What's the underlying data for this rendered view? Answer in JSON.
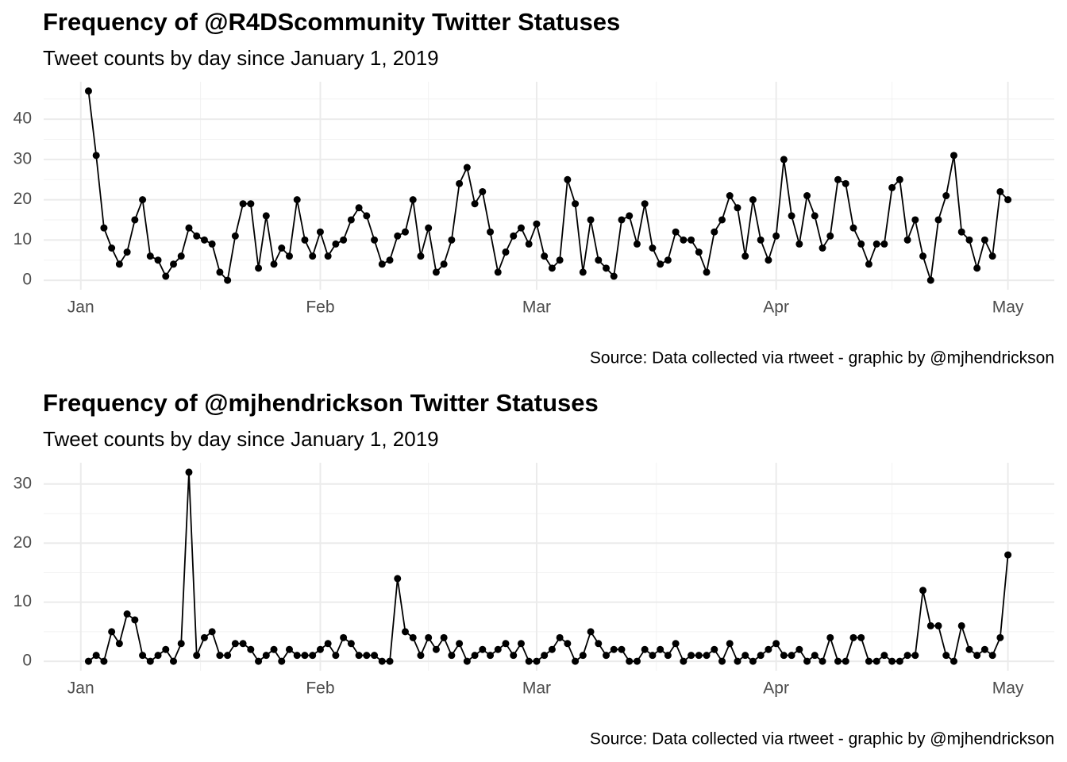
{
  "chart_data": [
    {
      "type": "line",
      "title": "Frequency of @R4DScommunity Twitter Statuses",
      "subtitle": "Tweet counts by day since January 1, 2019",
      "caption": "Source: Data collected via rtweet - graphic by @mjhendrickson",
      "x": [
        1,
        2,
        3,
        4,
        5,
        6,
        7,
        8,
        9,
        10,
        11,
        12,
        13,
        14,
        15,
        16,
        17,
        18,
        19,
        20,
        21,
        22,
        23,
        24,
        25,
        26,
        27,
        28,
        29,
        30,
        31,
        32,
        33,
        34,
        35,
        36,
        37,
        38,
        39,
        40,
        41,
        42,
        43,
        44,
        45,
        46,
        47,
        48,
        49,
        50,
        51,
        52,
        53,
        54,
        55,
        56,
        57,
        58,
        59,
        60,
        61,
        62,
        63,
        64,
        65,
        66,
        67,
        68,
        69,
        70,
        71,
        72,
        73,
        74,
        75,
        76,
        77,
        78,
        79,
        80,
        81,
        82,
        83,
        84,
        85,
        86,
        87,
        88,
        89,
        90,
        91,
        92,
        93,
        94,
        95,
        96,
        97,
        98,
        99,
        100,
        101,
        102,
        103,
        104,
        105,
        106,
        107,
        108,
        109,
        110,
        111,
        112,
        113,
        114,
        115,
        116,
        117,
        118,
        119,
        120
      ],
      "series": [
        {
          "color": "#000000",
          "values": [
            47,
            31,
            13,
            8,
            4,
            7,
            15,
            20,
            6,
            5,
            1,
            4,
            6,
            13,
            11,
            10,
            9,
            2,
            0,
            11,
            19,
            19,
            3,
            16,
            4,
            8,
            6,
            20,
            10,
            6,
            12,
            6,
            9,
            10,
            15,
            18,
            16,
            10,
            4,
            5,
            11,
            12,
            20,
            6,
            13,
            2,
            4,
            10,
            24,
            28,
            19,
            22,
            12,
            2,
            7,
            11,
            13,
            9,
            14,
            6,
            3,
            5,
            25,
            19,
            2,
            15,
            5,
            3,
            1,
            15,
            16,
            9,
            19,
            8,
            4,
            5,
            12,
            10,
            10,
            7,
            2,
            12,
            15,
            21,
            18,
            6,
            20,
            10,
            5,
            11,
            30,
            16,
            9,
            21,
            16,
            8,
            11,
            25,
            24,
            13,
            9,
            4,
            9,
            9,
            23,
            25,
            10,
            15,
            6,
            0,
            15,
            21,
            31,
            12,
            10,
            3,
            10,
            6,
            22,
            20
          ]
        }
      ],
      "xlim": [
        -4.8,
        126
      ],
      "xticks": [
        {
          "value": 0,
          "label": "Jan"
        },
        {
          "value": 31,
          "label": "Feb"
        },
        {
          "value": 59,
          "label": "Mar"
        },
        {
          "value": 90,
          "label": "Apr"
        },
        {
          "value": 120,
          "label": "May"
        }
      ],
      "minor_xticks": [
        15.5,
        45,
        74.5,
        105
      ],
      "ylim": [
        -2.35,
        49.3
      ],
      "yticks": [
        0,
        10,
        20,
        30,
        40
      ],
      "minor_yticks": [
        5,
        15,
        25,
        35,
        45
      ],
      "grid": true
    },
    {
      "type": "line",
      "title": "Frequency of @mjhendrickson Twitter Statuses",
      "subtitle": "Tweet counts by day since January 1, 2019",
      "caption": "Source: Data collected via rtweet - graphic by @mjhendrickson",
      "x": [
        1,
        2,
        3,
        4,
        5,
        6,
        7,
        8,
        9,
        10,
        11,
        12,
        13,
        14,
        15,
        16,
        17,
        18,
        19,
        20,
        21,
        22,
        23,
        24,
        25,
        26,
        27,
        28,
        29,
        30,
        31,
        32,
        33,
        34,
        35,
        36,
        37,
        38,
        39,
        40,
        41,
        42,
        43,
        44,
        45,
        46,
        47,
        48,
        49,
        50,
        51,
        52,
        53,
        54,
        55,
        56,
        57,
        58,
        59,
        60,
        61,
        62,
        63,
        64,
        65,
        66,
        67,
        68,
        69,
        70,
        71,
        72,
        73,
        74,
        75,
        76,
        77,
        78,
        79,
        80,
        81,
        82,
        83,
        84,
        85,
        86,
        87,
        88,
        89,
        90,
        91,
        92,
        93,
        94,
        95,
        96,
        97,
        98,
        99,
        100,
        101,
        102,
        103,
        104,
        105,
        106,
        107,
        108,
        109,
        110,
        111,
        112,
        113,
        114,
        115,
        116,
        117,
        118,
        119,
        120
      ],
      "series": [
        {
          "color": "#000000",
          "values": [
            0,
            1,
            0,
            5,
            3,
            8,
            7,
            1,
            0,
            1,
            2,
            0,
            3,
            32,
            1,
            4,
            5,
            1,
            1,
            3,
            3,
            2,
            0,
            1,
            2,
            0,
            2,
            1,
            1,
            1,
            2,
            3,
            1,
            4,
            3,
            1,
            1,
            1,
            0,
            0,
            14,
            5,
            4,
            1,
            4,
            2,
            4,
            1,
            3,
            0,
            1,
            2,
            1,
            2,
            3,
            1,
            3,
            0,
            0,
            1,
            2,
            4,
            3,
            0,
            1,
            5,
            3,
            1,
            2,
            2,
            0,
            0,
            2,
            1,
            2,
            1,
            3,
            0,
            1,
            1,
            1,
            2,
            0,
            3,
            0,
            1,
            0,
            1,
            2,
            3,
            1,
            1,
            2,
            0,
            1,
            0,
            4,
            0,
            0,
            4,
            4,
            0,
            0,
            1,
            0,
            0,
            1,
            1,
            12,
            6,
            6,
            1,
            0,
            6,
            2,
            1,
            2,
            1,
            4,
            18
          ]
        }
      ],
      "xlim": [
        -4.8,
        126
      ],
      "xticks": [
        {
          "value": 0,
          "label": "Jan"
        },
        {
          "value": 31,
          "label": "Feb"
        },
        {
          "value": 59,
          "label": "Mar"
        },
        {
          "value": 90,
          "label": "Apr"
        },
        {
          "value": 120,
          "label": "May"
        }
      ],
      "minor_xticks": [
        15.5,
        45,
        74.5,
        105
      ],
      "ylim": [
        -1.6,
        33.6
      ],
      "yticks": [
        0,
        10,
        20,
        30
      ],
      "minor_yticks": [
        5,
        15,
        25
      ],
      "grid": true
    }
  ]
}
